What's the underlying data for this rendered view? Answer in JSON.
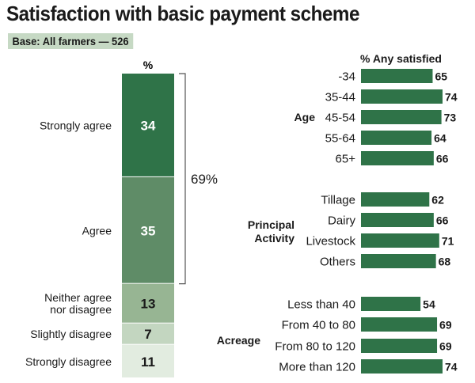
{
  "title": "Satisfaction with basic payment scheme",
  "base": "Base: All farmers — 526",
  "chart_data": [
    {
      "type": "bar",
      "subtype": "stacked-100",
      "header": "%",
      "categories": [
        "Strongly agree",
        "Agree",
        "Neither agree nor disagree",
        "Slightly disagree",
        "Strongly disagree"
      ],
      "values": [
        34,
        35,
        13,
        7,
        11
      ],
      "colors": [
        "#2f7348",
        "#5f8c67",
        "#97b593",
        "#c3d6c0",
        "#e2ece0"
      ],
      "value_text_colors": [
        "#ffffff",
        "#ffffff",
        "#1a1a1a",
        "#1a1a1a",
        "#1a1a1a"
      ],
      "bracket_label": "69%"
    },
    {
      "type": "bar",
      "orientation": "horizontal",
      "header": "% Any satisfied",
      "bar_color": "#2f7348",
      "xlim": [
        0,
        80
      ],
      "groups": [
        {
          "name": "Age",
          "categories": [
            "-34",
            "35-44",
            "45-54",
            "55-64",
            "65+"
          ],
          "values": [
            65,
            74,
            73,
            64,
            66
          ]
        },
        {
          "name": "Principal Activity",
          "name_lines": [
            "Principal",
            "Activity"
          ],
          "categories": [
            "Tillage",
            "Dairy",
            "Livestock",
            "Others"
          ],
          "values": [
            62,
            66,
            71,
            68
          ]
        },
        {
          "name": "Acreage",
          "categories": [
            "Less than 40",
            "From 40 to 80",
            "From 80 to 120",
            "More than 120"
          ],
          "values": [
            54,
            69,
            69,
            74
          ]
        }
      ]
    }
  ]
}
